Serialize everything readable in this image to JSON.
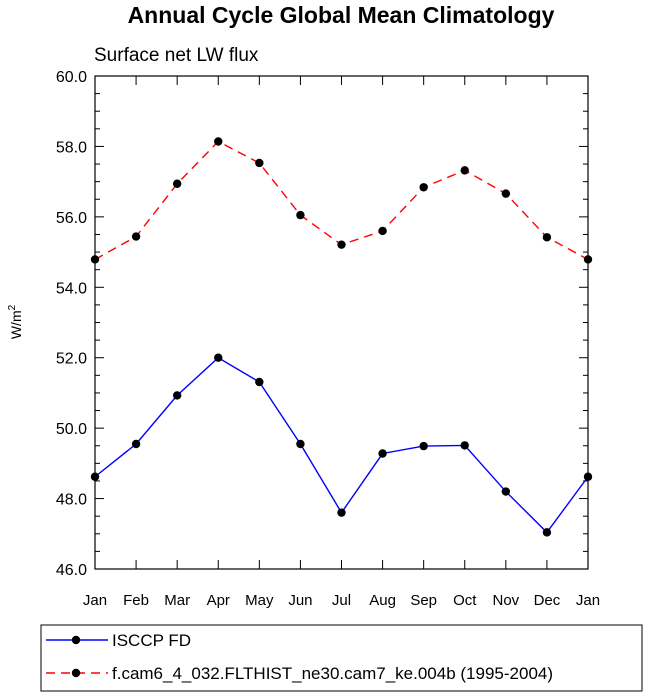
{
  "chart_data": {
    "type": "line",
    "title": "Annual Cycle Global Mean Climatology",
    "subtitle": "Surface net LW flux",
    "xlabel": "",
    "ylabel_base": "W/m",
    "ylabel_sup": "2",
    "ylim": [
      46.0,
      60.0
    ],
    "yticks": [
      "46.0",
      "48.0",
      "50.0",
      "52.0",
      "54.0",
      "56.0",
      "58.0",
      "60.0"
    ],
    "categories": [
      "Jan",
      "Feb",
      "Mar",
      "Apr",
      "May",
      "Jun",
      "Jul",
      "Aug",
      "Sep",
      "Oct",
      "Nov",
      "Dec",
      "Jan"
    ],
    "series": [
      {
        "name": "ISCCP FD",
        "color": "#0000ff",
        "style": "solid",
        "values": [
          48.62,
          49.55,
          50.93,
          52.0,
          51.31,
          49.55,
          47.6,
          49.28,
          49.49,
          49.51,
          48.2,
          47.04,
          48.62
        ]
      },
      {
        "name": "f.cam6_4_032.FLTHIST_ne30.cam7_ke.004b (1995-2004)",
        "color": "#ff0000",
        "style": "dashed",
        "values": [
          54.79,
          55.44,
          56.94,
          58.14,
          57.53,
          56.05,
          55.21,
          55.6,
          56.84,
          57.32,
          56.66,
          55.42,
          54.79
        ]
      }
    ],
    "legend_position": "bottom"
  }
}
